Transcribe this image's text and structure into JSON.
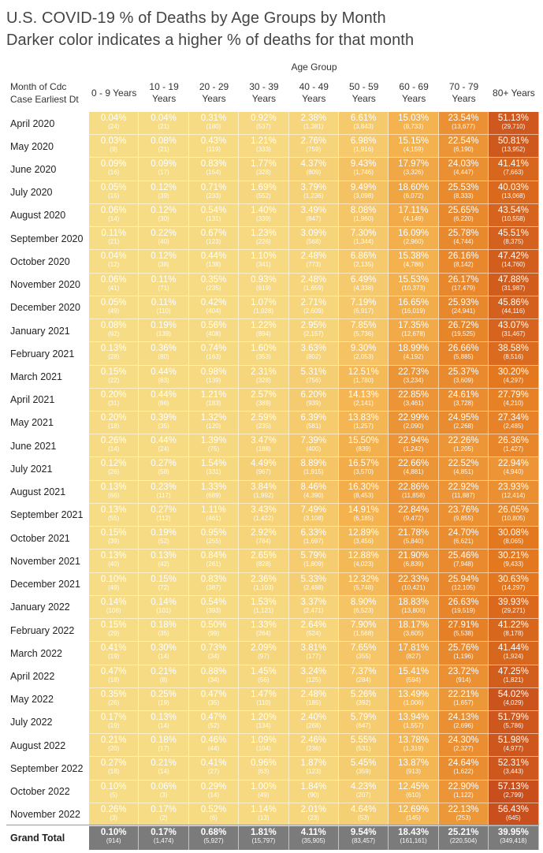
{
  "title": "U.S. COVID-19 % of Deaths by Age Groups by Month",
  "subtitle": "Darker color indicates a higher % of deaths for that month",
  "column_group_label": "Age Group",
  "row_header": [
    "Month of Cdc",
    "Case Earliest Dt"
  ],
  "columns": [
    [
      "0 - 9 Years"
    ],
    [
      "10 - 19",
      "Years"
    ],
    [
      "20 - 29",
      "Years"
    ],
    [
      "30 - 39",
      "Years"
    ],
    [
      "40 - 49",
      "Years"
    ],
    [
      "50 - 59",
      "Years"
    ],
    [
      "60 - 69",
      "Years"
    ],
    [
      "70 - 79",
      "Years"
    ],
    [
      "80+ Years"
    ]
  ],
  "colors": {
    "low": "#f6dc85",
    "mid": "#f4b34f",
    "high": "#e4781f",
    "max": "#c74e1c",
    "total_bg": "#7b7b7b"
  },
  "chart_data": {
    "type": "heatmap",
    "title": "U.S. COVID-19 % of Deaths by Age Groups by Month",
    "xlabel": "Age Group",
    "ylabel": "Month of Cdc Case Earliest Dt",
    "rows": [
      {
        "month": "April 2020",
        "pct": [
          "0.04%",
          "0.04%",
          "0.31%",
          "0.92%",
          "2.38%",
          "6.61%",
          "15.03%",
          "23.54%",
          "51.13%"
        ],
        "cnt": [
          "(24)",
          "(21)",
          "(180)",
          "(537)",
          "(1,381)",
          "(3,843)",
          "(8,733)",
          "(13,677)",
          "(29,710)"
        ]
      },
      {
        "month": "May 2020",
        "pct": [
          "0.03%",
          "0.08%",
          "0.43%",
          "1.21%",
          "2.76%",
          "6.98%",
          "15.15%",
          "22.54%",
          "50.81%"
        ],
        "cnt": [
          "(9)",
          "(21)",
          "(119)",
          "(333)",
          "(759)",
          "(1,916)",
          "(4,159)",
          "(6,190)",
          "(13,952)"
        ]
      },
      {
        "month": "June 2020",
        "pct": [
          "0.09%",
          "0.09%",
          "0.83%",
          "1.77%",
          "4.37%",
          "9.43%",
          "17.97%",
          "24.03%",
          "41.41%"
        ],
        "cnt": [
          "(16)",
          "(17)",
          "(154)",
          "(328)",
          "(809)",
          "(1,746)",
          "(3,326)",
          "(4,447)",
          "(7,663)"
        ]
      },
      {
        "month": "July 2020",
        "pct": [
          "0.05%",
          "0.12%",
          "0.71%",
          "1.69%",
          "3.79%",
          "9.49%",
          "18.60%",
          "25.53%",
          "40.03%"
        ],
        "cnt": [
          "(15)",
          "(39)",
          "(233)",
          "(552)",
          "(1,236)",
          "(3,098)",
          "(6,072)",
          "(8,333)",
          "(13,068)"
        ]
      },
      {
        "month": "August 2020",
        "pct": [
          "0.06%",
          "0.12%",
          "0.54%",
          "1.40%",
          "3.49%",
          "8.08%",
          "17.11%",
          "25.65%",
          "43.54%"
        ],
        "cnt": [
          "(14)",
          "(30)",
          "(131)",
          "(339)",
          "(847)",
          "(1,960)",
          "(4,149)",
          "(6,220)",
          "(10,558)"
        ]
      },
      {
        "month": "September 2020",
        "pct": [
          "0.11%",
          "0.22%",
          "0.67%",
          "1.23%",
          "3.09%",
          "7.30%",
          "16.09%",
          "25.78%",
          "45.51%"
        ],
        "cnt": [
          "(21)",
          "(40)",
          "(123)",
          "(226)",
          "(568)",
          "(1,344)",
          "(2,960)",
          "(4,744)",
          "(8,375)"
        ]
      },
      {
        "month": "October 2020",
        "pct": [
          "0.04%",
          "0.12%",
          "0.44%",
          "1.10%",
          "2.48%",
          "6.86%",
          "15.38%",
          "26.16%",
          "47.42%"
        ],
        "cnt": [
          "(12)",
          "(38)",
          "(138)",
          "(341)",
          "(773)",
          "(2,135)",
          "(4,786)",
          "(8,142)",
          "(14,760)"
        ]
      },
      {
        "month": "November 2020",
        "pct": [
          "0.06%",
          "0.11%",
          "0.35%",
          "0.93%",
          "2.48%",
          "6.49%",
          "15.53%",
          "26.17%",
          "47.88%"
        ],
        "cnt": [
          "(41)",
          "(71)",
          "(235)",
          "(619)",
          "(1,659)",
          "(4,338)",
          "(10,373)",
          "(17,479)",
          "(31,987)"
        ]
      },
      {
        "month": "December 2020",
        "pct": [
          "0.05%",
          "0.11%",
          "0.42%",
          "1.07%",
          "2.71%",
          "7.19%",
          "16.65%",
          "25.93%",
          "45.86%"
        ],
        "cnt": [
          "(49)",
          "(110)",
          "(404)",
          "(1,028)",
          "(2,609)",
          "(6,917)",
          "(16,019)",
          "(24,941)",
          "(44,116)"
        ]
      },
      {
        "month": "January 2021",
        "pct": [
          "0.08%",
          "0.19%",
          "0.56%",
          "1.22%",
          "2.95%",
          "7.85%",
          "17.35%",
          "26.72%",
          "43.07%"
        ],
        "cnt": [
          "(62)",
          "(139)",
          "(408)",
          "(894)",
          "(2,157)",
          "(5,736)",
          "(12,678)",
          "(19,525)",
          "(31,467)"
        ]
      },
      {
        "month": "February 2021",
        "pct": [
          "0.13%",
          "0.36%",
          "0.74%",
          "1.60%",
          "3.63%",
          "9.30%",
          "18.99%",
          "26.66%",
          "38.58%"
        ],
        "cnt": [
          "(28)",
          "(80)",
          "(163)",
          "(353)",
          "(802)",
          "(2,053)",
          "(4,192)",
          "(5,885)",
          "(8,516)"
        ]
      },
      {
        "month": "March 2021",
        "pct": [
          "0.15%",
          "0.44%",
          "0.98%",
          "2.31%",
          "5.31%",
          "12.51%",
          "22.73%",
          "25.37%",
          "30.20%"
        ],
        "cnt": [
          "(22)",
          "(63)",
          "(139)",
          "(328)",
          "(756)",
          "(1,780)",
          "(3,234)",
          "(3,609)",
          "(4,297)"
        ]
      },
      {
        "month": "April 2021",
        "pct": [
          "0.20%",
          "0.44%",
          "1.21%",
          "2.57%",
          "6.20%",
          "14.13%",
          "22.85%",
          "24.61%",
          "27.79%"
        ],
        "cnt": [
          "(31)",
          "(66)",
          "(183)",
          "(389)",
          "(939)",
          "(2,141)",
          "(3,461)",
          "(3,728)",
          "(4,210)"
        ]
      },
      {
        "month": "May 2021",
        "pct": [
          "0.20%",
          "0.39%",
          "1.32%",
          "2.59%",
          "6.39%",
          "13.83%",
          "22.99%",
          "24.95%",
          "27.34%"
        ],
        "cnt": [
          "(18)",
          "(35)",
          "(120)",
          "(235)",
          "(581)",
          "(1,257)",
          "(2,090)",
          "(2,268)",
          "(2,485)"
        ]
      },
      {
        "month": "June 2021",
        "pct": [
          "0.26%",
          "0.44%",
          "1.39%",
          "3.47%",
          "7.39%",
          "15.50%",
          "22.94%",
          "22.26%",
          "26.36%"
        ],
        "cnt": [
          "(14)",
          "(24)",
          "(75)",
          "(188)",
          "(400)",
          "(839)",
          "(1,242)",
          "(1,205)",
          "(1,427)"
        ]
      },
      {
        "month": "July 2021",
        "pct": [
          "0.12%",
          "0.27%",
          "1.54%",
          "4.49%",
          "8.89%",
          "16.57%",
          "22.66%",
          "22.52%",
          "22.94%"
        ],
        "cnt": [
          "(26)",
          "(58)",
          "(331)",
          "(967)",
          "(1,915)",
          "(3,570)",
          "(4,881)",
          "(4,851)",
          "(4,940)"
        ]
      },
      {
        "month": "August 2021",
        "pct": [
          "0.13%",
          "0.23%",
          "1.33%",
          "3.84%",
          "8.46%",
          "16.30%",
          "22.86%",
          "22.92%",
          "23.93%"
        ],
        "cnt": [
          "(66)",
          "(117)",
          "(689)",
          "(1,992)",
          "(4,390)",
          "(8,453)",
          "(11,858)",
          "(11,887)",
          "(12,414)"
        ]
      },
      {
        "month": "September 2021",
        "pct": [
          "0.13%",
          "0.27%",
          "1.11%",
          "3.43%",
          "7.49%",
          "14.91%",
          "22.84%",
          "23.76%",
          "26.05%"
        ],
        "cnt": [
          "(55)",
          "(112)",
          "(461)",
          "(1,422)",
          "(3,108)",
          "(6,185)",
          "(9,472)",
          "(9,855)",
          "(10,805)"
        ]
      },
      {
        "month": "October 2021",
        "pct": [
          "0.15%",
          "0.19%",
          "0.95%",
          "2.92%",
          "6.33%",
          "12.89%",
          "21.78%",
          "24.70%",
          "30.08%"
        ],
        "cnt": [
          "(39)",
          "(52)",
          "(255)",
          "(784)",
          "(1,697)",
          "(3,456)",
          "(5,840)",
          "(6,621)",
          "(8,065)"
        ]
      },
      {
        "month": "November 2021",
        "pct": [
          "0.13%",
          "0.13%",
          "0.84%",
          "2.65%",
          "5.79%",
          "12.88%",
          "21.90%",
          "25.46%",
          "30.21%"
        ],
        "cnt": [
          "(40)",
          "(42)",
          "(261)",
          "(828)",
          "(1,809)",
          "(4,023)",
          "(6,839)",
          "(7,948)",
          "(9,433)"
        ]
      },
      {
        "month": "December 2021",
        "pct": [
          "0.10%",
          "0.15%",
          "0.83%",
          "2.36%",
          "5.33%",
          "12.32%",
          "22.33%",
          "25.94%",
          "30.63%"
        ],
        "cnt": [
          "(49)",
          "(72)",
          "(387)",
          "(1,103)",
          "(2,488)",
          "(5,748)",
          "(10,421)",
          "(12,105)",
          "(14,297)"
        ]
      },
      {
        "month": "January 2022",
        "pct": [
          "0.14%",
          "0.14%",
          "0.54%",
          "1.53%",
          "3.37%",
          "8.90%",
          "18.83%",
          "26.63%",
          "39.93%"
        ],
        "cnt": [
          "(106)",
          "(101)",
          "(393)",
          "(1,121)",
          "(2,471)",
          "(6,523)",
          "(13,800)",
          "(19,519)",
          "(29,271)"
        ]
      },
      {
        "month": "February 2022",
        "pct": [
          "0.15%",
          "0.18%",
          "0.50%",
          "1.33%",
          "2.64%",
          "7.90%",
          "18.17%",
          "27.91%",
          "41.22%"
        ],
        "cnt": [
          "(29)",
          "(35)",
          "(99)",
          "(264)",
          "(524)",
          "(1,568)",
          "(3,605)",
          "(5,538)",
          "(8,178)"
        ]
      },
      {
        "month": "March 2022",
        "pct": [
          "0.41%",
          "0.30%",
          "0.73%",
          "2.09%",
          "3.81%",
          "7.65%",
          "17.81%",
          "25.76%",
          "41.44%"
        ],
        "cnt": [
          "(19)",
          "(14)",
          "(34)",
          "(97)",
          "(177)",
          "(355)",
          "(827)",
          "(1,196)",
          "(1,924)"
        ]
      },
      {
        "month": "April 2022",
        "pct": [
          "0.47%",
          "0.21%",
          "0.88%",
          "1.45%",
          "3.24%",
          "7.37%",
          "15.41%",
          "23.72%",
          "47.25%"
        ],
        "cnt": [
          "(18)",
          "(8)",
          "(34)",
          "(56)",
          "(125)",
          "(284)",
          "(594)",
          "(914)",
          "(1,821)"
        ]
      },
      {
        "month": "May 2022",
        "pct": [
          "0.35%",
          "0.25%",
          "0.47%",
          "1.47%",
          "2.48%",
          "5.26%",
          "13.49%",
          "22.21%",
          "54.02%"
        ],
        "cnt": [
          "(26)",
          "(19)",
          "(35)",
          "(110)",
          "(185)",
          "(392)",
          "(1,006)",
          "(1,657)",
          "(4,029)"
        ]
      },
      {
        "month": "July 2022",
        "pct": [
          "0.17%",
          "0.13%",
          "0.47%",
          "1.20%",
          "2.40%",
          "5.79%",
          "13.94%",
          "24.13%",
          "51.79%"
        ],
        "cnt": [
          "(19)",
          "(14)",
          "(52)",
          "(134)",
          "(268)",
          "(647)",
          "(1,557)",
          "(2,696)",
          "(5,786)"
        ]
      },
      {
        "month": "August 2022",
        "pct": [
          "0.21%",
          "0.18%",
          "0.46%",
          "1.09%",
          "2.46%",
          "5.55%",
          "13.78%",
          "24.30%",
          "51.98%"
        ],
        "cnt": [
          "(20)",
          "(17)",
          "(44)",
          "(104)",
          "(236)",
          "(531)",
          "(1,319)",
          "(2,327)",
          "(4,977)"
        ]
      },
      {
        "month": "September 2022",
        "pct": [
          "0.27%",
          "0.21%",
          "0.41%",
          "0.96%",
          "1.87%",
          "5.45%",
          "13.87%",
          "24.64%",
          "52.31%"
        ],
        "cnt": [
          "(18)",
          "(14)",
          "(27)",
          "(63)",
          "(123)",
          "(359)",
          "(913)",
          "(1,622)",
          "(3,443)"
        ]
      },
      {
        "month": "October 2022",
        "pct": [
          "0.10%",
          "0.06%",
          "0.29%",
          "1.00%",
          "1.84%",
          "4.23%",
          "12.45%",
          "22.90%",
          "57.13%"
        ],
        "cnt": [
          "(5)",
          "(3)",
          "(14)",
          "(49)",
          "(90)",
          "(207)",
          "(610)",
          "(1,122)",
          "(2,799)"
        ]
      },
      {
        "month": "November 2022",
        "pct": [
          "0.26%",
          "0.17%",
          "0.52%",
          "1.14%",
          "2.01%",
          "4.64%",
          "12.69%",
          "22.13%",
          "56.43%"
        ],
        "cnt": [
          "(3)",
          "(2)",
          "(6)",
          "(13)",
          "(23)",
          "(53)",
          "(145)",
          "(253)",
          "(645)"
        ]
      }
    ],
    "total": {
      "label": "Grand Total",
      "pct": [
        "0.10%",
        "0.17%",
        "0.68%",
        "1.81%",
        "4.11%",
        "9.54%",
        "18.43%",
        "25.21%",
        "39.95%"
      ],
      "cnt": [
        "(914)",
        "(1,474)",
        "(5,927)",
        "(15,797)",
        "(35,905)",
        "(83,457)",
        "(161,161)",
        "(220,504)",
        "(349,418)"
      ]
    }
  }
}
